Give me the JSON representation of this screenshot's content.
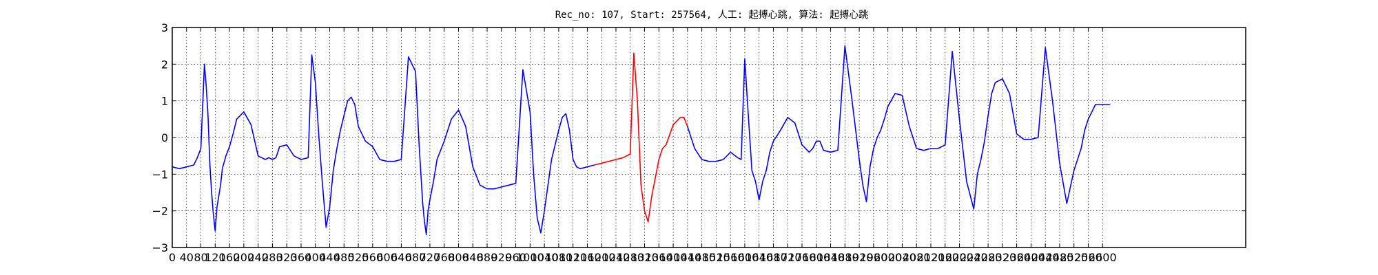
{
  "chart_data": {
    "type": "line",
    "title": "Rec_no: 107, Start: 257564, 人工: 起搏心跳, 算法: 起搏心跳",
    "xlabel": "",
    "ylabel": "",
    "xlim": [
      0,
      3000
    ],
    "ylim": [
      -3,
      3
    ],
    "yticks": [
      -3,
      -2,
      -1,
      0,
      1,
      2,
      3
    ],
    "yticklabels": [
      "−3",
      "−2",
      "−1",
      "0",
      "1",
      "2",
      "3"
    ],
    "xticks": [
      0,
      40,
      80,
      120,
      160,
      200,
      240,
      280,
      320,
      360,
      400,
      440,
      480,
      520,
      560,
      600,
      640,
      680,
      720,
      760,
      800,
      840,
      880,
      920,
      960,
      1000,
      1040,
      1080,
      1120,
      1160,
      1200,
      1240,
      1280,
      1320,
      1360,
      1400,
      1440,
      1480,
      1520,
      1560,
      1600,
      1640,
      1680,
      1720,
      1760,
      1800,
      1840,
      1880,
      1920,
      1960,
      2000,
      2040,
      2080,
      2120,
      2160,
      2200,
      2240,
      2280,
      2320,
      2360,
      2400,
      2440,
      2480,
      2520,
      2560,
      2600
    ],
    "grid": true,
    "series": [
      {
        "color": "#0000ff",
        "x": [
          0,
          20,
          40,
          60,
          70,
          80,
          90,
          95,
          100,
          105,
          110,
          115,
          120,
          125,
          130,
          135,
          140,
          150,
          160,
          170,
          180,
          200,
          220,
          240,
          260,
          270,
          280,
          290,
          300,
          320,
          340,
          360,
          380,
          390,
          400,
          410,
          420,
          430,
          440,
          450,
          460,
          470,
          480,
          490,
          500,
          510,
          520,
          540,
          560,
          580,
          600,
          620,
          640,
          660,
          680,
          685,
          690,
          695,
          700
        ],
        "y": [
          -0.8,
          -0.85,
          -0.8,
          -0.75,
          -0.55,
          -0.3,
          2.0,
          1.4,
          0.6,
          -0.7,
          -1.5,
          -2.1,
          -2.55,
          -1.9,
          -1.6,
          -1.3,
          -0.85,
          -0.5,
          -0.25,
          0.1,
          0.5,
          0.7,
          0.35,
          -0.5,
          -0.6,
          -0.55,
          -0.6,
          -0.55,
          -0.25,
          -0.2,
          -0.5,
          -0.6,
          -0.55,
          2.25,
          1.5,
          0.0,
          -1.3,
          -2.45,
          -1.9,
          -0.9,
          -0.3,
          0.2,
          0.6,
          1.0,
          1.1,
          0.9,
          0.3,
          -0.1,
          -0.25,
          -0.6,
          -0.65,
          -0.65,
          -0.6,
          2.2,
          1.8,
          0.8,
          -0.2,
          -1.0,
          -1.8
        ]
      },
      {
        "color": "#0000ff",
        "x": [
          700,
          705,
          710,
          715,
          720,
          730,
          740,
          760,
          780,
          800,
          820,
          840,
          860,
          880,
          900,
          920,
          940,
          960,
          980,
          1000,
          1010,
          1020,
          1030,
          1040,
          1050,
          1060,
          1070,
          1080,
          1090,
          1100,
          1110,
          1120,
          1130,
          1140,
          1160,
          1180
        ],
        "y": [
          -1.8,
          -2.3,
          -2.65,
          -2.0,
          -1.7,
          -1.2,
          -0.6,
          -0.1,
          0.5,
          0.75,
          0.3,
          -0.8,
          -1.3,
          -1.4,
          -1.4,
          -1.35,
          -1.3,
          -1.25,
          1.85,
          0.7,
          -1.0,
          -2.2,
          -2.6,
          -2.0,
          -1.3,
          -0.6,
          -0.2,
          0.2,
          0.55,
          0.65,
          0.2,
          -0.6,
          -0.8,
          -0.85,
          -0.8,
          -0.75
        ]
      },
      {
        "color": "#ff0000",
        "x": [
          1180,
          1220,
          1260,
          1280,
          1290,
          1300,
          1310,
          1320,
          1330,
          1340,
          1350,
          1360,
          1370,
          1380,
          1400,
          1420,
          1430,
          1440
        ],
        "y": [
          -0.75,
          -0.65,
          -0.55,
          -0.45,
          2.3,
          1.0,
          -1.3,
          -2.0,
          -2.3,
          -1.6,
          -1.1,
          -0.6,
          -0.3,
          -0.2,
          0.35,
          0.55,
          0.55,
          0.3
        ]
      },
      {
        "color": "#0000ff",
        "x": [
          1440,
          1460,
          1480,
          1500,
          1520,
          1540,
          1560,
          1580,
          1590,
          1600,
          1610,
          1620,
          1630,
          1640,
          1650,
          1660,
          1670,
          1680,
          1700,
          1720,
          1740,
          1760,
          1780,
          1790,
          1800,
          1810,
          1820,
          1840,
          1860,
          1880,
          1900,
          1920,
          1930,
          1940,
          1950,
          1960,
          1970,
          1980,
          1990,
          2000,
          2020,
          2040,
          2060,
          2080,
          2100,
          2120,
          2140,
          2160,
          2180,
          2200,
          2220,
          2240,
          2250,
          2260,
          2270,
          2280,
          2290,
          2300,
          2320,
          2340,
          2360,
          2380,
          2400,
          2420,
          2440,
          2460,
          2480,
          2500,
          2520,
          2530,
          2540,
          2550,
          2560,
          2570,
          2580,
          2590,
          2600,
          2610,
          2620
        ],
        "y": [
          0.3,
          -0.3,
          -0.6,
          -0.65,
          -0.65,
          -0.6,
          -0.4,
          -0.55,
          -0.6,
          2.15,
          0.6,
          -0.9,
          -1.2,
          -1.7,
          -1.2,
          -0.9,
          -0.4,
          -0.1,
          0.2,
          0.55,
          0.4,
          -0.2,
          -0.4,
          -0.3,
          -0.1,
          -0.1,
          -0.35,
          -0.4,
          -0.35,
          2.5,
          1.0,
          -0.6,
          -1.3,
          -1.75,
          -0.8,
          -0.3,
          0.0,
          0.2,
          0.5,
          0.85,
          1.2,
          1.15,
          0.3,
          -0.3,
          -0.35,
          -0.3,
          -0.3,
          -0.2,
          2.35,
          0.5,
          -1.2,
          -1.95,
          -1.0,
          -0.6,
          -0.1,
          0.6,
          1.2,
          1.5,
          1.6,
          1.2,
          0.1,
          -0.05,
          -0.05,
          0.0,
          2.45,
          1.0,
          -0.7,
          -1.8,
          -0.9,
          -0.6,
          -0.3,
          0.2,
          0.5,
          0.7,
          0.9,
          0.9,
          0.9,
          0.9,
          0.9
        ]
      }
    ]
  }
}
